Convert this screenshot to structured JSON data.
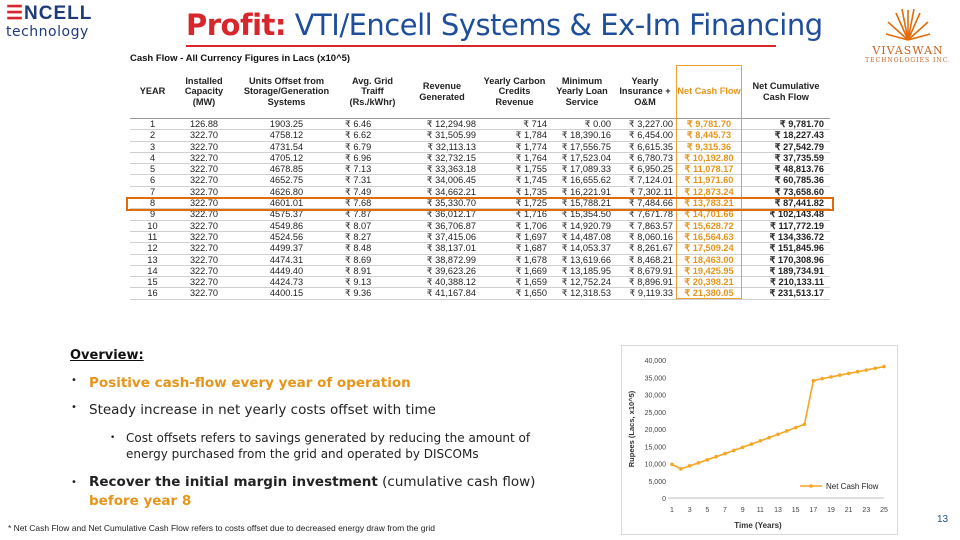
{
  "header": {
    "title_bold": "Profit:",
    "title_rest": " VTI/Encell Systems & Ex-Im Financing",
    "logo_left_line1": "NCELL",
    "logo_left_line2": "technology",
    "logo_right_brand": "Vivaswan",
    "logo_right_sub": "Technologies Inc."
  },
  "table": {
    "caption": "Cash Flow - All Currency Figures in Lacs (x10^5)",
    "columns": [
      "YEAR",
      "Installed Capacity (MW)",
      "Units Offset from Storage/Generation Systems",
      "Avg. Grid Traiff (Rs./kWhr)",
      "Revenue Generated",
      "Yearly Carbon Credits Revenue",
      "Minimum Yearly Loan Service",
      "Yearly Insurance + O&M",
      "Net Cash Flow",
      "Net Cumulative Cash Flow"
    ],
    "rows": [
      [
        "1",
        "126.88",
        "1903.25",
        "₹ 6.46",
        "₹ 12,294.98",
        "₹ 714",
        "₹ 0.00",
        "₹ 3,227.00",
        "₹ 9,781.70",
        "₹ 9,781.70"
      ],
      [
        "2",
        "322.70",
        "4758.12",
        "₹ 6.62",
        "₹ 31,505.99",
        "₹ 1,784",
        "₹ 18,390.16",
        "₹ 6,454.00",
        "₹ 8,445.73",
        "₹ 18,227.43"
      ],
      [
        "3",
        "322.70",
        "4731.54",
        "₹ 6.79",
        "₹ 32,113.13",
        "₹ 1,774",
        "₹ 17,556.75",
        "₹ 6,615.35",
        "₹ 9,315.36",
        "₹ 27,542.79"
      ],
      [
        "4",
        "322.70",
        "4705.12",
        "₹ 6.96",
        "₹ 32,732.15",
        "₹ 1,764",
        "₹ 17,523.04",
        "₹ 6,780.73",
        "₹ 10,192.80",
        "₹ 37,735.59"
      ],
      [
        "5",
        "322.70",
        "4678.85",
        "₹ 7.13",
        "₹ 33,363.18",
        "₹ 1,755",
        "₹ 17,089.33",
        "₹ 6,950.25",
        "₹ 11,078.17",
        "₹ 48,813.76"
      ],
      [
        "6",
        "322.70",
        "4652.75",
        "₹ 7.31",
        "₹ 34,006.45",
        "₹ 1,745",
        "₹ 16,655.62",
        "₹ 7,124.01",
        "₹ 11,971.60",
        "₹ 60,785.36"
      ],
      [
        "7",
        "322.70",
        "4626.80",
        "₹ 7.49",
        "₹ 34,662.21",
        "₹ 1,735",
        "₹ 16,221.91",
        "₹ 7,302.11",
        "₹ 12,873.24",
        "₹ 73,658.60"
      ],
      [
        "8",
        "322.70",
        "4601.01",
        "₹ 7.68",
        "₹ 35,330.70",
        "₹ 1,725",
        "₹ 15,788.21",
        "₹ 7,484.66",
        "₹ 13,783.21",
        "₹ 87,441.82"
      ],
      [
        "9",
        "322.70",
        "4575.37",
        "₹ 7.87",
        "₹ 36,012.17",
        "₹ 1,716",
        "₹ 15,354.50",
        "₹ 7,671.78",
        "₹ 14,701.66",
        "₹ 102,143.48"
      ],
      [
        "10",
        "322.70",
        "4549.86",
        "₹ 8.07",
        "₹ 36,706.87",
        "₹ 1,706",
        "₹ 14,920.79",
        "₹ 7,863.57",
        "₹ 15,628.72",
        "₹ 117,772.19"
      ],
      [
        "11",
        "322.70",
        "4524.56",
        "₹ 8.27",
        "₹ 37,415.06",
        "₹ 1,697",
        "₹ 14,487.08",
        "₹ 8,060.16",
        "₹ 16,564.63",
        "₹ 134,336.72"
      ],
      [
        "12",
        "322.70",
        "4499.37",
        "₹ 8.48",
        "₹ 38,137.01",
        "₹ 1,687",
        "₹ 14,053.37",
        "₹ 8,261.67",
        "₹ 17,509.24",
        "₹ 151,845.96"
      ],
      [
        "13",
        "322.70",
        "4474.31",
        "₹ 8.69",
        "₹ 38,872.99",
        "₹ 1,678",
        "₹ 13,619.66",
        "₹ 8,468.21",
        "₹ 18,463.00",
        "₹ 170,308.96"
      ],
      [
        "14",
        "322.70",
        "4449.40",
        "₹ 8.91",
        "₹ 39,623.26",
        "₹ 1,669",
        "₹ 13,185.95",
        "₹ 8,679.91",
        "₹ 19,425.95",
        "₹ 189,734.91"
      ],
      [
        "15",
        "322.70",
        "4424.73",
        "₹ 9.13",
        "₹ 40,388.12",
        "₹ 1,659",
        "₹ 12,752.24",
        "₹ 8,896.91",
        "₹ 20,398.21",
        "₹ 210,133.11"
      ],
      [
        "16",
        "322.70",
        "4400.15",
        "₹ 9.36",
        "₹ 41,167.84",
        "₹ 1,650",
        "₹ 12,318.53",
        "₹ 9,119.33",
        "₹ 21,380.05",
        "₹ 231,513.17"
      ]
    ],
    "highlight_row": "8",
    "net_color": "#e6951a",
    "highlight_color": "#e36c0a"
  },
  "overview": {
    "heading": "Overview:",
    "b1": "Positive cash-flow every year of operation",
    "b2": "Steady increase in net yearly costs offset with time",
    "b2_sub": "Cost offsets refers to savings generated by reducing the amount of energy purchased from the grid and operated by DISCOMs",
    "b3_bold": "Recover the initial margin investment",
    "b3_rest": " (cumulative cash flow)",
    "b3_orange": "before year 8"
  },
  "footnote": "* Net Cash Flow and Net Cumulative Cash Flow refers to costs offset due to decreased energy draw from the grid",
  "page_number": "13",
  "chart_data": {
    "type": "line",
    "title": "",
    "xlabel": "Time (Years)",
    "ylabel": "Rupees (Lacs, x10^5)",
    "x": [
      1,
      2,
      3,
      4,
      5,
      6,
      7,
      8,
      9,
      10,
      11,
      12,
      13,
      14,
      15,
      16,
      17,
      18,
      19,
      20,
      21,
      22,
      23,
      24,
      25
    ],
    "xticks": [
      "1",
      "3",
      "5",
      "7",
      "9",
      "11",
      "13",
      "15",
      "17",
      "19",
      "21",
      "23",
      "25"
    ],
    "yticks": [
      "0",
      "5,000",
      "10,000",
      "15,000",
      "20,000",
      "25,000",
      "30,000",
      "35,000",
      "40,000"
    ],
    "ylim": [
      0,
      40000
    ],
    "series": [
      {
        "name": "Net Cash Flow",
        "color": "#f5a623",
        "values": [
          9781.7,
          8445.73,
          9315.36,
          10192.8,
          11078.17,
          11971.6,
          12873.24,
          13783.21,
          14701.66,
          15628.72,
          16564.63,
          17509.24,
          18463.0,
          19425.95,
          20398.21,
          21380.05,
          34000,
          34600,
          35100,
          35600,
          36100,
          36600,
          37100,
          37600,
          38100
        ]
      }
    ],
    "legend": "bottom-right",
    "grid": false
  }
}
